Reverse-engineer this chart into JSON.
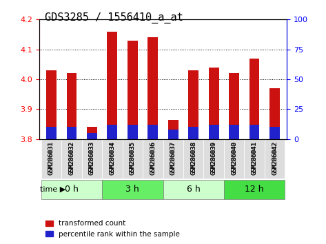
{
  "title": "GDS3285 / 1556410_a_at",
  "samples": [
    "GSM286031",
    "GSM286032",
    "GSM286033",
    "GSM286034",
    "GSM286035",
    "GSM286036",
    "GSM286037",
    "GSM286038",
    "GSM286039",
    "GSM286040",
    "GSM286041",
    "GSM286042"
  ],
  "transformed_count": [
    4.03,
    4.02,
    3.84,
    4.16,
    4.13,
    4.14,
    3.865,
    4.03,
    4.04,
    4.02,
    4.07,
    3.97
  ],
  "percentile": [
    10,
    10,
    5,
    12,
    12,
    12,
    8,
    10,
    12,
    12,
    12,
    10
  ],
  "ymin": 3.8,
  "ymax": 4.2,
  "yticks": [
    3.8,
    3.9,
    4.0,
    4.1,
    4.2
  ],
  "right_yticks": [
    0,
    25,
    50,
    75,
    100
  ],
  "bar_color_red": "#cc1111",
  "bar_color_blue": "#2222cc",
  "grid_color": "#000000",
  "time_groups": [
    {
      "label": "0 h",
      "start": 0,
      "end": 3,
      "color": "#ccffcc"
    },
    {
      "label": "3 h",
      "start": 3,
      "end": 6,
      "color": "#66ee66"
    },
    {
      "label": "6 h",
      "start": 6,
      "end": 9,
      "color": "#ccffcc"
    },
    {
      "label": "12 h",
      "start": 9,
      "end": 12,
      "color": "#44dd44"
    }
  ],
  "tick_label_area_color": "#dddddd",
  "legend_items": [
    "transformed count",
    "percentile rank within the sample"
  ],
  "title_fontsize": 11,
  "axis_fontsize": 9,
  "tick_fontsize": 8
}
